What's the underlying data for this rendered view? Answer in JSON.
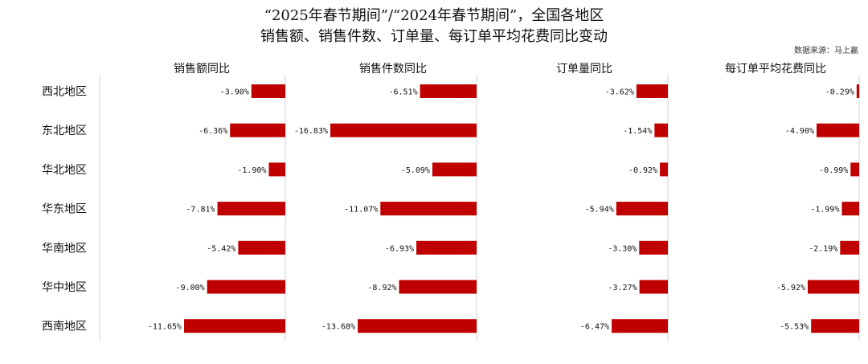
{
  "header": {
    "title_line1": "“2025年春节期间”/“2024年春节期间”，全国各地区",
    "title_line2": "销售额、销售件数、订单量、每订单平均花费同比变动",
    "source": "数据来源：马上赢"
  },
  "colors": {
    "bar": "#c00000",
    "axis": "#d0d0d0"
  },
  "chart_data": {
    "type": "bar",
    "orientation": "horizontal",
    "categories": [
      "西北地区",
      "东北地区",
      "华北地区",
      "华东地区",
      "华南地区",
      "华中地区",
      "西南地区"
    ],
    "series": [
      {
        "name": "销售额同比",
        "values": [
          -3.9,
          -6.36,
          -1.9,
          -7.81,
          -5.42,
          -9.0,
          -11.65
        ],
        "labels": [
          "-3.90%",
          "-6.36%",
          "-1.90%",
          "-7.81%",
          "-5.42%",
          "-9.00%",
          "-11.65%"
        ]
      },
      {
        "name": "销售件数同比",
        "values": [
          -6.51,
          -16.83,
          -5.09,
          -11.07,
          -6.93,
          -8.92,
          -13.68
        ],
        "labels": [
          "-6.51%",
          "-16.83%",
          "-5.09%",
          "-11.07%",
          "-6.93%",
          "-8.92%",
          "-13.68%"
        ]
      },
      {
        "name": "订单量同比",
        "values": [
          -3.62,
          -1.54,
          -0.92,
          -5.94,
          -3.3,
          -3.27,
          -6.47
        ],
        "labels": [
          "-3.62%",
          "-1.54%",
          "-0.92%",
          "-5.94%",
          "-3.30%",
          "-3.27%",
          "-6.47%"
        ]
      },
      {
        "name": "每订单平均花费同比",
        "values": [
          -0.29,
          -4.9,
          -0.99,
          -1.99,
          -2.19,
          -5.92,
          -5.53
        ],
        "labels": [
          "-0.29%",
          "-4.90%",
          "-0.99%",
          "-1.99%",
          "-2.19%",
          "-5.92%",
          "-5.53%"
        ]
      }
    ]
  }
}
